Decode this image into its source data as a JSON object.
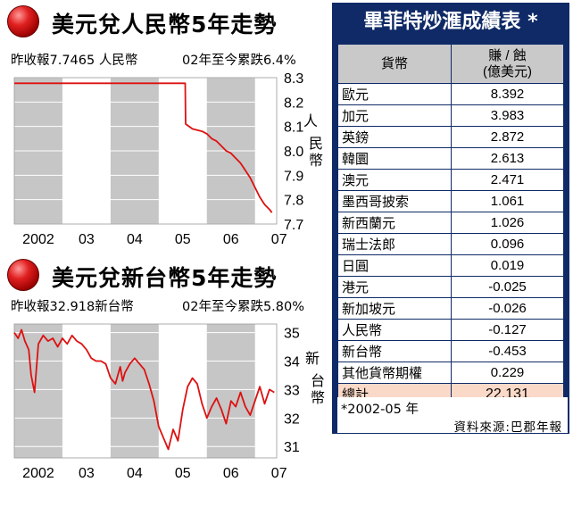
{
  "chart_data": [
    {
      "type": "line",
      "title": "美元兌人民幣5年走勢",
      "subtitle_left": "昨收報7.7465 人民幣",
      "subtitle_right": "02年至今累跌6.4%",
      "x_ticks": [
        "2002",
        "03",
        "04",
        "05",
        "06",
        "07"
      ],
      "y_ticks": [
        "8.3",
        "8.2",
        "8.1",
        "8.0",
        "7.9",
        "7.8",
        "7.7"
      ],
      "ylabel": "人民幣",
      "ylim": [
        7.7,
        8.3
      ],
      "xlim": [
        2002.0,
        2007.45
      ],
      "grid": true,
      "color": "#dd1111",
      "series": [
        {
          "x": [
            2002.0,
            2005.55,
            2005.56,
            2005.7,
            2005.9,
            2006.0,
            2006.1,
            2006.2,
            2006.3,
            2006.4,
            2006.5,
            2006.6,
            2006.7,
            2006.8,
            2006.9,
            2007.0,
            2007.1,
            2007.2,
            2007.3,
            2007.35
          ],
          "y": [
            8.277,
            8.277,
            8.11,
            8.09,
            8.08,
            8.07,
            8.05,
            8.04,
            8.02,
            8.0,
            7.99,
            7.97,
            7.95,
            7.92,
            7.89,
            7.85,
            7.81,
            7.78,
            7.76,
            7.747
          ]
        }
      ]
    },
    {
      "type": "line",
      "title": "美元兌新台幣5年走勢",
      "subtitle_left": "昨收報32.918新台幣",
      "subtitle_right": "02年至今累跌5.80%",
      "x_ticks": [
        "2002",
        "03",
        "04",
        "05",
        "06",
        "07"
      ],
      "y_ticks": [
        "35",
        "34",
        "33",
        "32",
        "31"
      ],
      "ylabel": "新台幣",
      "ylim": [
        30.6,
        35.3
      ],
      "xlim": [
        2002.0,
        2007.45
      ],
      "grid": true,
      "color": "#dd1111",
      "series": [
        {
          "x": [
            2002.0,
            2002.08,
            2002.15,
            2002.22,
            2002.3,
            2002.35,
            2002.42,
            2002.5,
            2002.6,
            2002.7,
            2002.8,
            2002.9,
            2003.0,
            2003.1,
            2003.2,
            2003.3,
            2003.4,
            2003.5,
            2003.6,
            2003.7,
            2003.8,
            2003.9,
            2004.0,
            2004.1,
            2004.2,
            2004.25,
            2004.3,
            2004.4,
            2004.5,
            2004.6,
            2004.7,
            2004.8,
            2004.9,
            2005.0,
            2005.1,
            2005.2,
            2005.3,
            2005.4,
            2005.5,
            2005.6,
            2005.7,
            2005.8,
            2005.9,
            2006.0,
            2006.1,
            2006.2,
            2006.3,
            2006.4,
            2006.5,
            2006.6,
            2006.7,
            2006.8,
            2006.9,
            2007.0,
            2007.1,
            2007.2,
            2007.3,
            2007.4
          ],
          "y": [
            35.0,
            34.8,
            35.1,
            34.7,
            34.4,
            33.5,
            32.9,
            34.6,
            34.9,
            34.7,
            34.8,
            34.5,
            34.8,
            34.6,
            34.9,
            34.7,
            34.6,
            34.4,
            34.1,
            34.0,
            34.0,
            33.9,
            33.4,
            33.2,
            33.8,
            33.3,
            33.6,
            33.9,
            34.1,
            33.9,
            33.7,
            33.2,
            32.6,
            31.7,
            31.3,
            30.9,
            31.6,
            31.2,
            32.3,
            33.1,
            33.4,
            33.2,
            32.5,
            32.0,
            32.4,
            32.7,
            32.3,
            31.8,
            32.6,
            32.4,
            32.9,
            32.4,
            32.1,
            32.6,
            33.1,
            32.5,
            33.0,
            32.9
          ]
        }
      ]
    }
  ],
  "table": {
    "title": "畢菲特炒滙成績表 *",
    "header_currency": "貨幣",
    "header_value_line1": "賺 / 蝕",
    "header_value_line2": "(億美元)",
    "rows": [
      {
        "name": "歐元",
        "value": "8.392"
      },
      {
        "name": "加元",
        "value": "3.983"
      },
      {
        "name": "英鎊",
        "value": "2.872"
      },
      {
        "name": "韓圜",
        "value": "2.613"
      },
      {
        "name": "澳元",
        "value": "2.471"
      },
      {
        "name": "墨西哥披索",
        "value": "1.061"
      },
      {
        "name": "新西蘭元",
        "value": "1.026"
      },
      {
        "name": "瑞士法郎",
        "value": "0.096"
      },
      {
        "name": "日圓",
        "value": "0.019"
      },
      {
        "name": "港元",
        "value": "-0.025"
      },
      {
        "name": "新加坡元",
        "value": "-0.026"
      },
      {
        "name": "人民幣",
        "value": "-0.127"
      },
      {
        "name": "新台幣",
        "value": "-0.453"
      },
      {
        "name": "其他貨幣期權",
        "value": "0.229"
      }
    ],
    "total": {
      "name": "總計",
      "value": "22.131"
    },
    "footnote": "*2002-05 年",
    "source": "資料來源:巴郡年報"
  },
  "colors": {
    "table_bg": "#0f2a66",
    "header_bg": "#c9c9c9",
    "total_bg": "#fbd9c8",
    "line": "#dd1111",
    "band": "#c6c6c6"
  }
}
